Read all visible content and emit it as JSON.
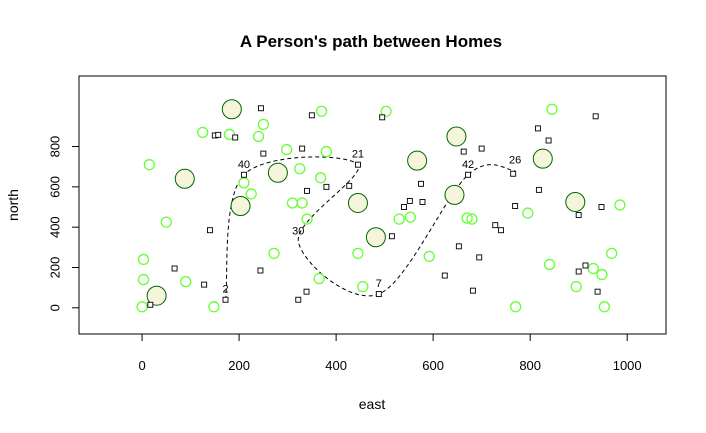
{
  "chart_data": {
    "type": "scatter",
    "title": "A Person's path between Homes",
    "xlabel": "east",
    "ylabel": "north",
    "xlim": [
      -130,
      1080
    ],
    "ylim": [
      -130,
      1150
    ],
    "x_ticks": [
      0,
      200,
      400,
      600,
      800,
      1000
    ],
    "y_ticks": [
      0,
      200,
      400,
      600,
      800
    ],
    "grid": false,
    "legend": "none",
    "colors": {
      "small_circle": "#66ff33",
      "big_circle_fill": "#f5f5dc",
      "big_circle_stroke": "#006400",
      "square": "#000000",
      "path": "#000000"
    },
    "series": [
      {
        "kind": "small-circles",
        "points": [
          [
            0,
            5
          ],
          [
            3,
            140
          ],
          [
            3,
            240
          ],
          [
            15,
            710
          ],
          [
            50,
            425
          ],
          [
            90,
            130
          ],
          [
            125,
            870
          ],
          [
            148,
            5
          ],
          [
            180,
            860
          ],
          [
            210,
            620
          ],
          [
            225,
            565
          ],
          [
            240,
            850
          ],
          [
            250,
            910
          ],
          [
            272,
            270
          ],
          [
            298,
            785
          ],
          [
            310,
            520
          ],
          [
            325,
            690
          ],
          [
            330,
            520
          ],
          [
            340,
            440
          ],
          [
            365,
            145
          ],
          [
            368,
            645
          ],
          [
            370,
            975
          ],
          [
            380,
            775
          ],
          [
            445,
            270
          ],
          [
            455,
            105
          ],
          [
            503,
            975
          ],
          [
            530,
            440
          ],
          [
            553,
            450
          ],
          [
            592,
            255
          ],
          [
            670,
            445
          ],
          [
            680,
            440
          ],
          [
            770,
            5
          ],
          [
            795,
            470
          ],
          [
            840,
            215
          ],
          [
            845,
            985
          ],
          [
            895,
            105
          ],
          [
            930,
            195
          ],
          [
            948,
            165
          ],
          [
            953,
            5
          ],
          [
            968,
            270
          ],
          [
            985,
            510
          ]
        ]
      },
      {
        "kind": "big-circles",
        "points": [
          [
            30,
            60
          ],
          [
            88,
            640
          ],
          [
            185,
            985
          ],
          [
            203,
            505
          ],
          [
            280,
            670
          ],
          [
            445,
            520
          ],
          [
            482,
            350
          ],
          [
            567,
            730
          ],
          [
            644,
            560
          ],
          [
            648,
            850
          ],
          [
            826,
            740
          ],
          [
            893,
            525
          ]
        ]
      },
      {
        "kind": "squares",
        "points": [
          [
            17,
            15
          ],
          [
            67,
            195
          ],
          [
            128,
            115
          ],
          [
            140,
            385
          ],
          [
            150,
            855
          ],
          [
            157,
            858
          ],
          [
            172,
            40
          ],
          [
            192,
            845
          ],
          [
            210,
            660
          ],
          [
            244,
            185
          ],
          [
            245,
            990
          ],
          [
            250,
            765
          ],
          [
            322,
            40
          ],
          [
            330,
            790
          ],
          [
            339,
            80
          ],
          [
            340,
            580
          ],
          [
            350,
            955
          ],
          [
            380,
            600
          ],
          [
            427,
            605
          ],
          [
            445,
            710
          ],
          [
            488,
            68
          ],
          [
            495,
            945
          ],
          [
            515,
            355
          ],
          [
            540,
            500
          ],
          [
            552,
            530
          ],
          [
            575,
            615
          ],
          [
            578,
            525
          ],
          [
            624,
            160
          ],
          [
            653,
            305
          ],
          [
            663,
            775
          ],
          [
            672,
            660
          ],
          [
            682,
            85
          ],
          [
            695,
            250
          ],
          [
            700,
            790
          ],
          [
            728,
            410
          ],
          [
            740,
            385
          ],
          [
            765,
            665
          ],
          [
            769,
            505
          ],
          [
            816,
            890
          ],
          [
            818,
            585
          ],
          [
            838,
            830
          ],
          [
            900,
            180
          ],
          [
            900,
            460
          ],
          [
            914,
            210
          ],
          [
            935,
            950
          ],
          [
            939,
            80
          ],
          [
            947,
            500
          ]
        ]
      },
      {
        "kind": "dashed-path",
        "points": [
          [
            172,
            40
          ],
          [
            210,
            660
          ],
          [
            445,
            710
          ],
          [
            322,
            330
          ],
          [
            488,
            68
          ],
          [
            672,
            660
          ],
          [
            769,
            680
          ]
        ]
      }
    ],
    "annotations": [
      {
        "text": "2",
        "x": 172,
        "y": 40
      },
      {
        "text": "40",
        "x": 210,
        "y": 660
      },
      {
        "text": "21",
        "x": 445,
        "y": 710
      },
      {
        "text": "30",
        "x": 322,
        "y": 330
      },
      {
        "text": "7",
        "x": 488,
        "y": 68
      },
      {
        "text": "42",
        "x": 672,
        "y": 660
      },
      {
        "text": "26",
        "x": 769,
        "y": 680
      }
    ]
  }
}
